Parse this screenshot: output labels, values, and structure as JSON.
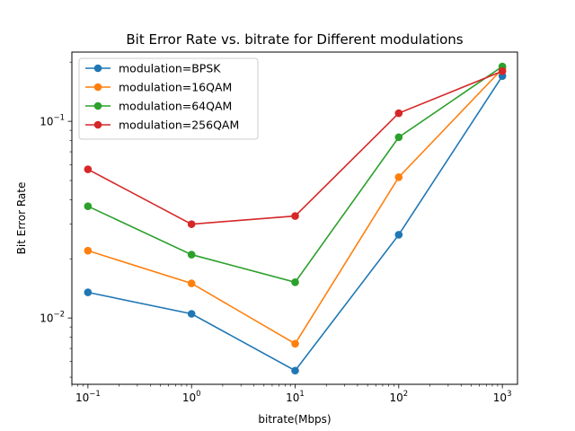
{
  "chart_data": {
    "type": "line",
    "title": "Bit Error Rate vs. bitrate for Different modulations",
    "xlabel": "bitrate(Mbps)",
    "ylabel": "Bit Error Rate",
    "xscale": "log",
    "yscale": "log",
    "x": [
      0.1,
      1,
      10,
      100,
      1000
    ],
    "xlim": [
      0.07,
      1400
    ],
    "ylim": [
      0.0046,
      0.225
    ],
    "x_ticks": [
      {
        "value": 0.1,
        "base": "10",
        "exp": "−1"
      },
      {
        "value": 1,
        "base": "10",
        "exp": "0"
      },
      {
        "value": 10,
        "base": "10",
        "exp": "1"
      },
      {
        "value": 100,
        "base": "10",
        "exp": "2"
      },
      {
        "value": 1000,
        "base": "10",
        "exp": "3"
      }
    ],
    "y_ticks": [
      {
        "value": 0.01,
        "base": "10",
        "exp": "−2"
      },
      {
        "value": 0.1,
        "base": "10",
        "exp": "−1"
      }
    ],
    "grid": false,
    "legend_position": "top-left",
    "series": [
      {
        "name": "modulation=BPSK",
        "color": "#1f77b4",
        "values": [
          0.0135,
          0.0105,
          0.0054,
          0.0265,
          0.17
        ]
      },
      {
        "name": "modulation=16QAM",
        "color": "#ff7f0e",
        "values": [
          0.022,
          0.015,
          0.0074,
          0.052,
          0.185
        ]
      },
      {
        "name": "modulation=64QAM",
        "color": "#2ca02c",
        "values": [
          0.037,
          0.021,
          0.0152,
          0.083,
          0.19
        ]
      },
      {
        "name": "modulation=256QAM",
        "color": "#d62728",
        "values": [
          0.057,
          0.03,
          0.033,
          0.11,
          0.18
        ]
      }
    ]
  }
}
